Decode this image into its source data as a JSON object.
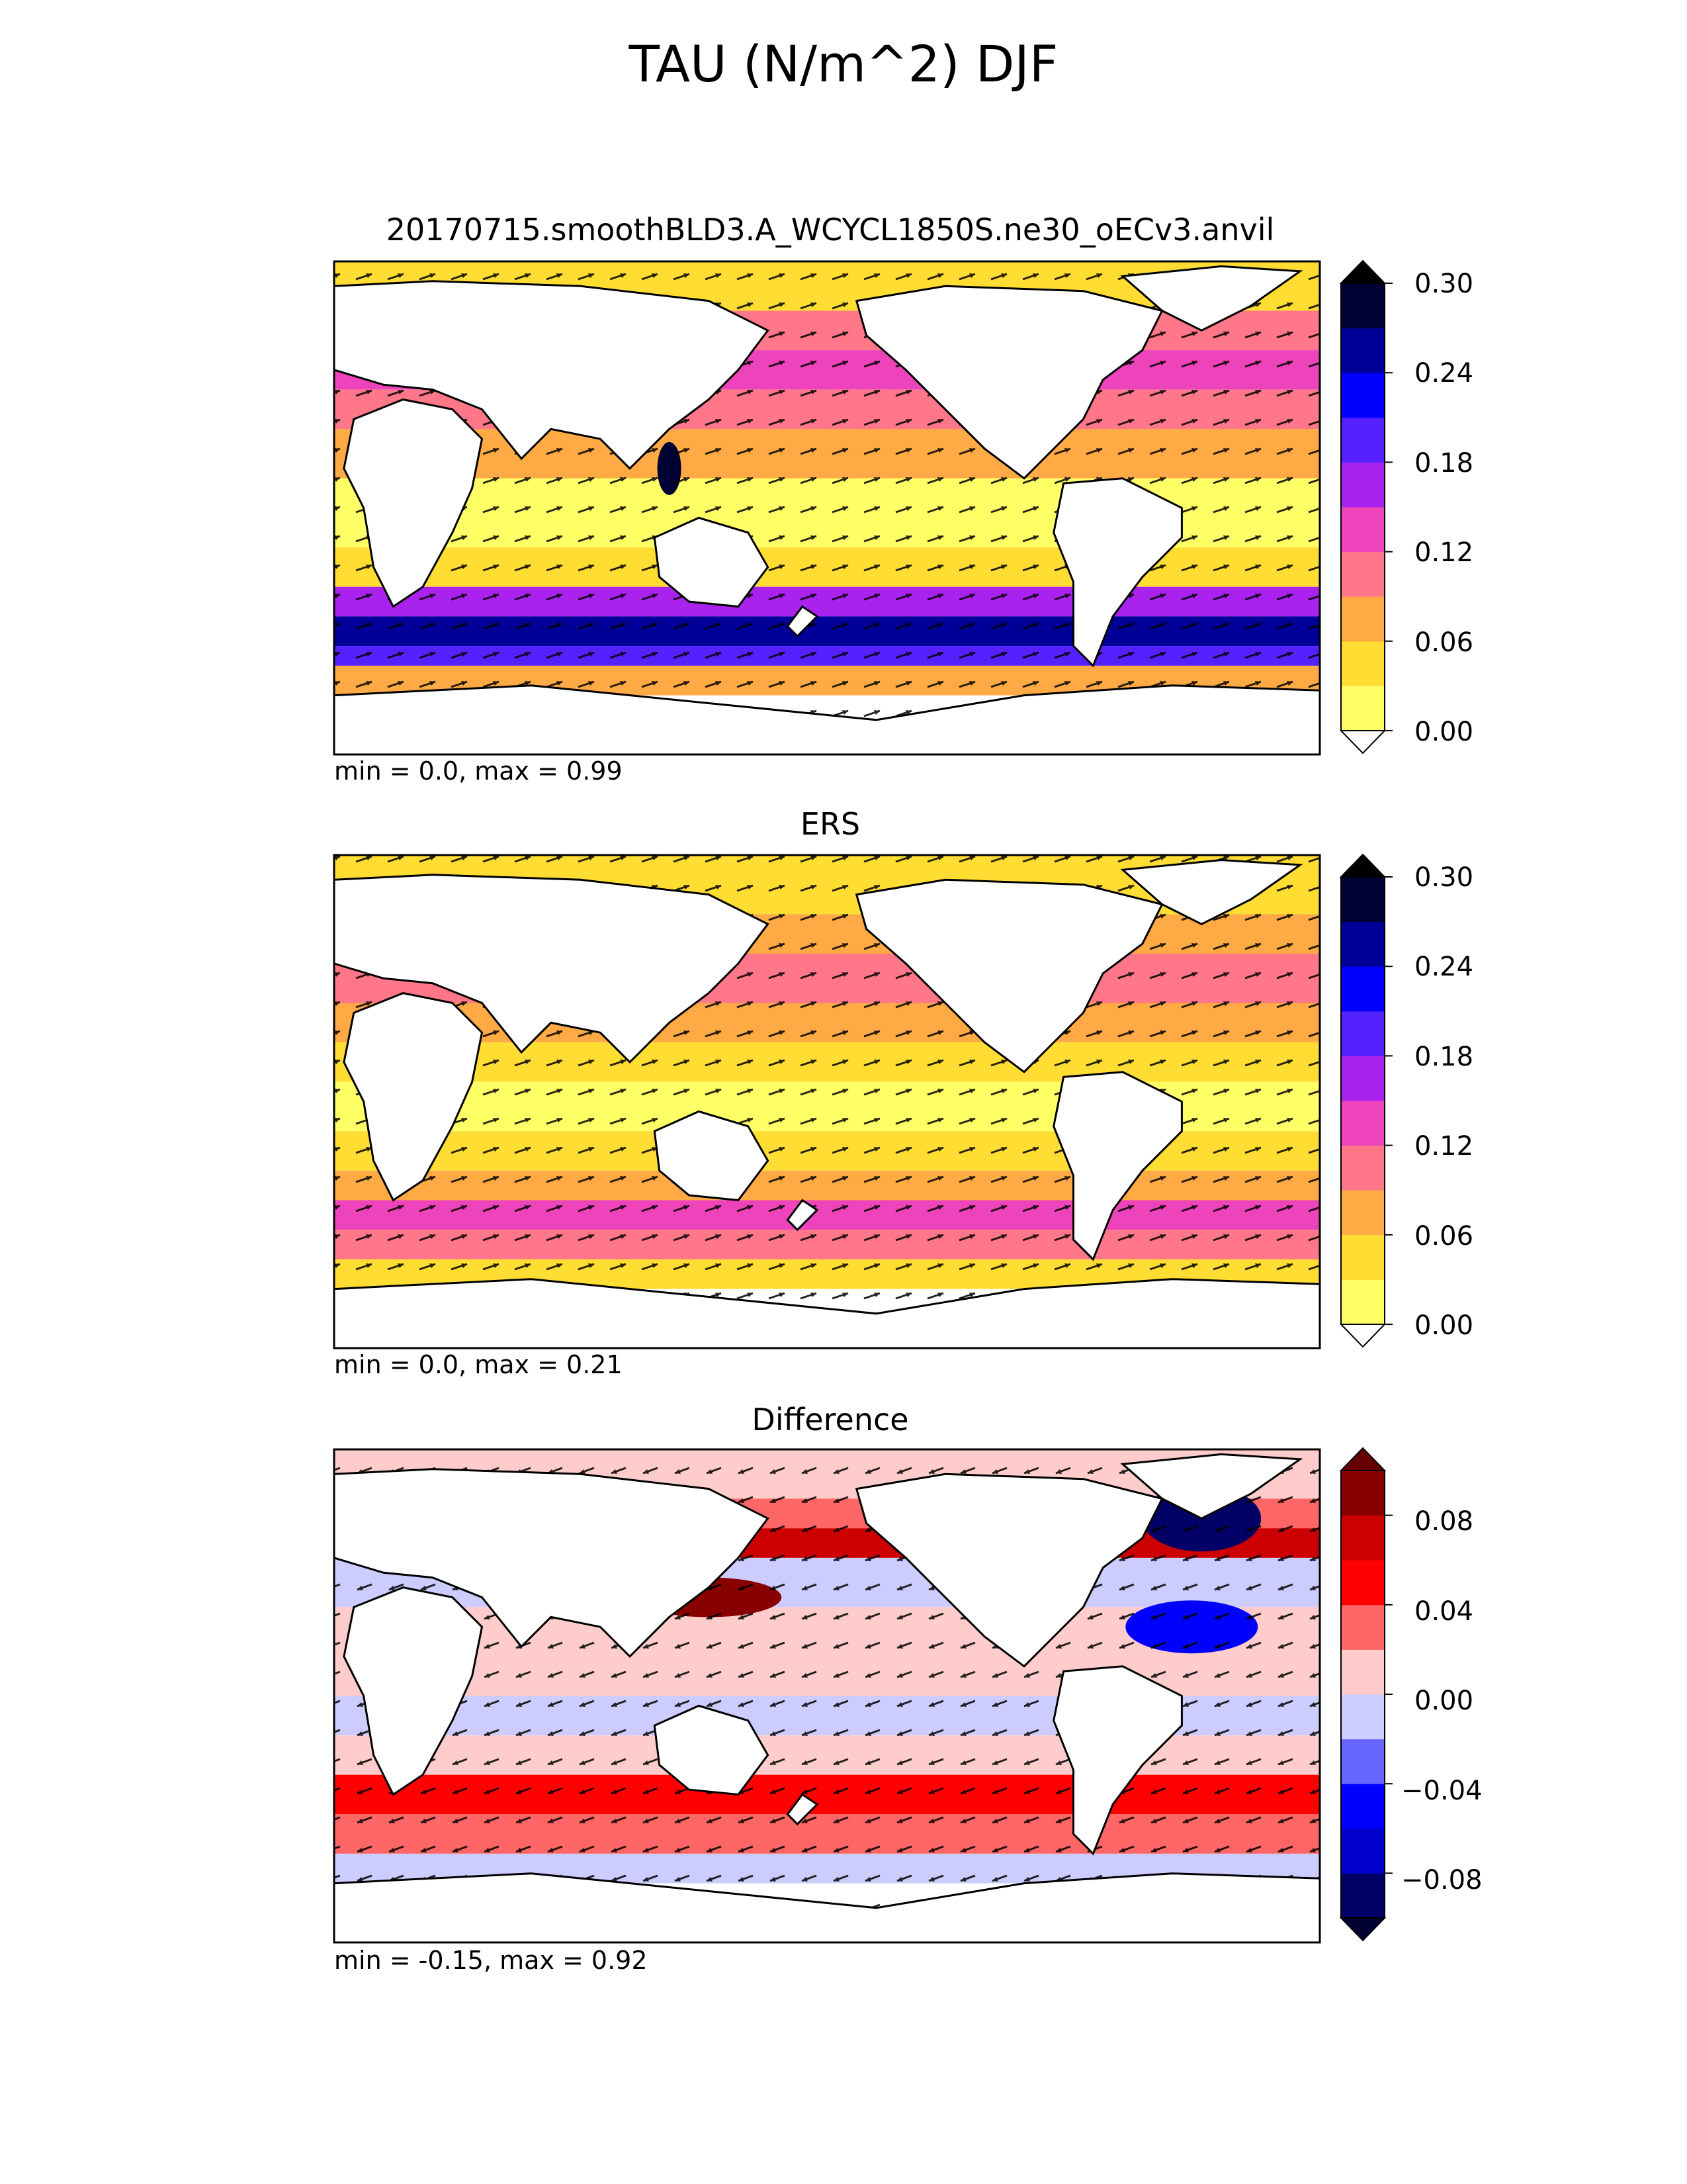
{
  "figure": {
    "title": "TAU (N/m^2) DJF"
  },
  "panels": [
    {
      "title": "20170715.smoothBLD3.A_WCYCL1850S.ne30_oECv3.anvil",
      "stats": "min = 0.0, max = 0.99",
      "colorbar": {
        "ticks": [
          "0.00",
          "0.06",
          "0.12",
          "0.18",
          "0.24",
          "0.30"
        ],
        "levels": [
          0.0,
          0.03,
          0.06,
          0.09,
          0.12,
          0.15,
          0.18,
          0.21,
          0.24,
          0.27,
          0.3
        ],
        "colors": [
          "#ffff66",
          "#ffdd33",
          "#ffaa44",
          "#ff7788",
          "#ee44bb",
          "#aa22ee",
          "#5522ff",
          "#0000ff",
          "#000099",
          "#000033"
        ],
        "under_color": "#ffffff",
        "over_color": "#000000"
      }
    },
    {
      "title": "ERS",
      "stats": "min = 0.0, max = 0.21",
      "colorbar": {
        "ticks": [
          "0.00",
          "0.06",
          "0.12",
          "0.18",
          "0.24",
          "0.30"
        ],
        "levels": [
          0.0,
          0.03,
          0.06,
          0.09,
          0.12,
          0.15,
          0.18,
          0.21,
          0.24,
          0.27,
          0.3
        ],
        "colors": [
          "#ffff66",
          "#ffdd33",
          "#ffaa44",
          "#ff7788",
          "#ee44bb",
          "#aa22ee",
          "#5522ff",
          "#0000ff",
          "#000099",
          "#000033"
        ],
        "under_color": "#ffffff",
        "over_color": "#000000"
      }
    },
    {
      "title": "Difference",
      "stats": "min = -0.15, max = 0.92",
      "colorbar": {
        "ticks": [
          "−0.08",
          "−0.04",
          "0.00",
          "0.04",
          "0.08"
        ],
        "levels": [
          -0.1,
          -0.08,
          -0.06,
          -0.04,
          -0.02,
          0.0,
          0.02,
          0.04,
          0.06,
          0.08,
          0.1
        ],
        "colors": [
          "#000066",
          "#0000cc",
          "#0000ff",
          "#6666ff",
          "#ccccff",
          "#ffcccc",
          "#ff6666",
          "#ff0000",
          "#cc0000",
          "#880000"
        ],
        "under_color": "#000033",
        "over_color": "#660000"
      }
    }
  ]
}
